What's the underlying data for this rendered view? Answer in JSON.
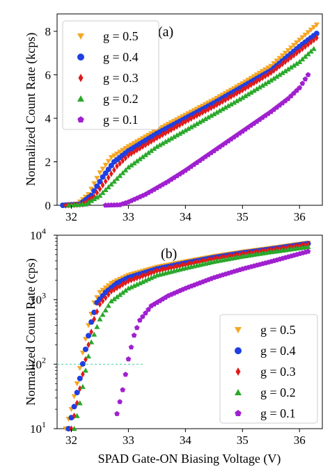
{
  "figure": {
    "xlabel": "SPAD Gate-ON Biasing Voltage (V)"
  },
  "colors": {
    "g05": "#f5a623",
    "g04": "#1f3fe0",
    "g03": "#e01a1a",
    "g02": "#2aa82a",
    "g01": "#a020d0",
    "ref_line": "#40d0a0"
  },
  "chart_data": [
    {
      "type": "scatter",
      "panel": "(a)",
      "ylabel": "Normalized Count Rate (kcps)",
      "xlim": [
        31.75,
        36.4
      ],
      "ylim": [
        0,
        8.8
      ],
      "x_ticks": [
        32,
        33,
        34,
        35,
        36
      ],
      "y_ticks": [
        0,
        2,
        4,
        6,
        8
      ],
      "legend_position": "top-left",
      "series": [
        {
          "name": "g = 0.5",
          "marker": "triangle-down",
          "color": "#f5a623",
          "x_start": 31.85,
          "x_end": 36.3,
          "step": 0.05,
          "curve": [
            [
              31.85,
              0
            ],
            [
              32.1,
              0.05
            ],
            [
              32.3,
              0.5
            ],
            [
              32.5,
              1.5
            ],
            [
              32.7,
              2.2
            ],
            [
              33.0,
              2.7
            ],
            [
              33.5,
              3.45
            ],
            [
              34.0,
              4.15
            ],
            [
              34.5,
              4.85
            ],
            [
              35.0,
              5.6
            ],
            [
              35.5,
              6.4
            ],
            [
              36.0,
              7.6
            ],
            [
              36.3,
              8.3
            ]
          ]
        },
        {
          "name": "g = 0.4",
          "marker": "circle",
          "color": "#1f3fe0",
          "x_start": 31.85,
          "x_end": 36.3,
          "step": 0.05,
          "curve": [
            [
              31.85,
              0
            ],
            [
              32.15,
              0.05
            ],
            [
              32.35,
              0.45
            ],
            [
              32.55,
              1.3
            ],
            [
              32.75,
              2.0
            ],
            [
              33.0,
              2.5
            ],
            [
              33.5,
              3.3
            ],
            [
              34.0,
              4.0
            ],
            [
              34.5,
              4.7
            ],
            [
              35.0,
              5.45
            ],
            [
              35.5,
              6.2
            ],
            [
              36.0,
              7.3
            ],
            [
              36.3,
              7.9
            ]
          ]
        },
        {
          "name": "g = 0.3",
          "marker": "diamond",
          "color": "#e01a1a",
          "x_start": 31.9,
          "x_end": 36.3,
          "step": 0.05,
          "curve": [
            [
              31.9,
              0
            ],
            [
              32.2,
              0.05
            ],
            [
              32.4,
              0.4
            ],
            [
              32.6,
              1.1
            ],
            [
              32.8,
              1.8
            ],
            [
              33.0,
              2.3
            ],
            [
              33.5,
              3.1
            ],
            [
              34.0,
              3.85
            ],
            [
              34.5,
              4.55
            ],
            [
              35.0,
              5.3
            ],
            [
              35.5,
              6.1
            ],
            [
              36.0,
              7.1
            ],
            [
              36.3,
              7.7
            ]
          ]
        },
        {
          "name": "g = 0.2",
          "marker": "triangle-up",
          "color": "#2aa82a",
          "x_start": 31.95,
          "x_end": 36.25,
          "step": 0.05,
          "curve": [
            [
              31.95,
              0
            ],
            [
              32.25,
              0.05
            ],
            [
              32.5,
              0.45
            ],
            [
              32.75,
              1.1
            ],
            [
              33.0,
              1.75
            ],
            [
              33.5,
              2.7
            ],
            [
              34.0,
              3.45
            ],
            [
              34.5,
              4.2
            ],
            [
              35.0,
              4.95
            ],
            [
              35.5,
              5.75
            ],
            [
              36.0,
              6.6
            ],
            [
              36.25,
              7.2
            ]
          ]
        },
        {
          "name": "g = 0.1",
          "marker": "pentagon",
          "color": "#a020d0",
          "x_start": 32.6,
          "x_end": 36.15,
          "step": 0.05,
          "curve": [
            [
              32.6,
              0
            ],
            [
              32.85,
              0.02
            ],
            [
              33.0,
              0.15
            ],
            [
              33.3,
              0.5
            ],
            [
              33.7,
              1.1
            ],
            [
              34.0,
              1.6
            ],
            [
              34.5,
              2.5
            ],
            [
              35.0,
              3.4
            ],
            [
              35.5,
              4.3
            ],
            [
              35.8,
              4.9
            ],
            [
              36.0,
              5.4
            ],
            [
              36.15,
              6.0
            ]
          ]
        }
      ]
    },
    {
      "type": "scatter",
      "panel": "(b)",
      "ylabel": "Normalized Count Rate (cps)",
      "yscale": "log",
      "xlim": [
        31.75,
        36.4
      ],
      "ylim": [
        10,
        10000
      ],
      "x_ticks": [
        32,
        33,
        34,
        35,
        36
      ],
      "y_tick_labels": [
        "10^1",
        "10^2",
        "10^3",
        "10^4"
      ],
      "y_tick_values": [
        10,
        100,
        1000,
        10000
      ],
      "legend_position": "right",
      "reference_line": {
        "y": 100,
        "x_from": 31.75,
        "x_to": 33.25,
        "style": "dashed"
      },
      "series": [
        {
          "name": "g = 0.5",
          "marker": "triangle-down",
          "color": "#f5a623",
          "x_start": 31.9,
          "x_end": 36.15,
          "step": 0.05,
          "curve": [
            [
              31.9,
              10
            ],
            [
              32.0,
              20
            ],
            [
              32.1,
              50
            ],
            [
              32.2,
              150
            ],
            [
              32.3,
              400
            ],
            [
              32.4,
              900
            ],
            [
              32.5,
              1300
            ],
            [
              32.7,
              1800
            ],
            [
              33.0,
              2400
            ],
            [
              33.5,
              3200
            ],
            [
              34.0,
              3900
            ],
            [
              34.5,
              4700
            ],
            [
              35.0,
              5500
            ],
            [
              35.5,
              6300
            ],
            [
              36.15,
              7600
            ]
          ]
        },
        {
          "name": "g = 0.4",
          "marker": "circle",
          "color": "#1f3fe0",
          "x_start": 31.95,
          "x_end": 36.15,
          "step": 0.05,
          "curve": [
            [
              31.95,
              10
            ],
            [
              32.05,
              22
            ],
            [
              32.15,
              60
            ],
            [
              32.25,
              170
            ],
            [
              32.35,
              450
            ],
            [
              32.45,
              900
            ],
            [
              32.6,
              1300
            ],
            [
              32.8,
              1800
            ],
            [
              33.0,
              2200
            ],
            [
              33.5,
              3000
            ],
            [
              34.0,
              3700
            ],
            [
              34.5,
              4500
            ],
            [
              35.0,
              5300
            ],
            [
              35.5,
              6100
            ],
            [
              36.15,
              7400
            ]
          ]
        },
        {
          "name": "g = 0.3",
          "marker": "diamond",
          "color": "#e01a1a",
          "x_start": 32.0,
          "x_end": 36.15,
          "step": 0.05,
          "curve": [
            [
              32.0,
              10
            ],
            [
              32.1,
              25
            ],
            [
              32.2,
              70
            ],
            [
              32.3,
              200
            ],
            [
              32.4,
              500
            ],
            [
              32.5,
              850
            ],
            [
              32.7,
              1350
            ],
            [
              33.0,
              1950
            ],
            [
              33.5,
              2800
            ],
            [
              34.0,
              3500
            ],
            [
              34.5,
              4300
            ],
            [
              35.0,
              5100
            ],
            [
              35.5,
              5900
            ],
            [
              36.15,
              7200
            ]
          ]
        },
        {
          "name": "g = 0.2",
          "marker": "triangle-up",
          "color": "#2aa82a",
          "x_start": 32.05,
          "x_end": 36.15,
          "step": 0.05,
          "curve": [
            [
              32.05,
              10
            ],
            [
              32.15,
              25
            ],
            [
              32.25,
              80
            ],
            [
              32.35,
              220
            ],
            [
              32.5,
              500
            ],
            [
              32.7,
              950
            ],
            [
              33.0,
              1500
            ],
            [
              33.5,
              2400
            ],
            [
              34.0,
              3100
            ],
            [
              34.5,
              3900
            ],
            [
              35.0,
              4700
            ],
            [
              35.5,
              5500
            ],
            [
              36.15,
              6600
            ]
          ]
        },
        {
          "name": "g = 0.1",
          "marker": "pentagon",
          "color": "#a020d0",
          "x_start": 32.8,
          "x_end": 36.15,
          "step": 0.05,
          "curve": [
            [
              32.8,
              17
            ],
            [
              32.9,
              40
            ],
            [
              33.0,
              120
            ],
            [
              33.1,
              280
            ],
            [
              33.2,
              480
            ],
            [
              33.4,
              800
            ],
            [
              33.7,
              1150
            ],
            [
              34.0,
              1500
            ],
            [
              34.5,
              2200
            ],
            [
              35.0,
              3000
            ],
            [
              35.5,
              3900
            ],
            [
              36.15,
              5600
            ]
          ]
        }
      ]
    }
  ]
}
